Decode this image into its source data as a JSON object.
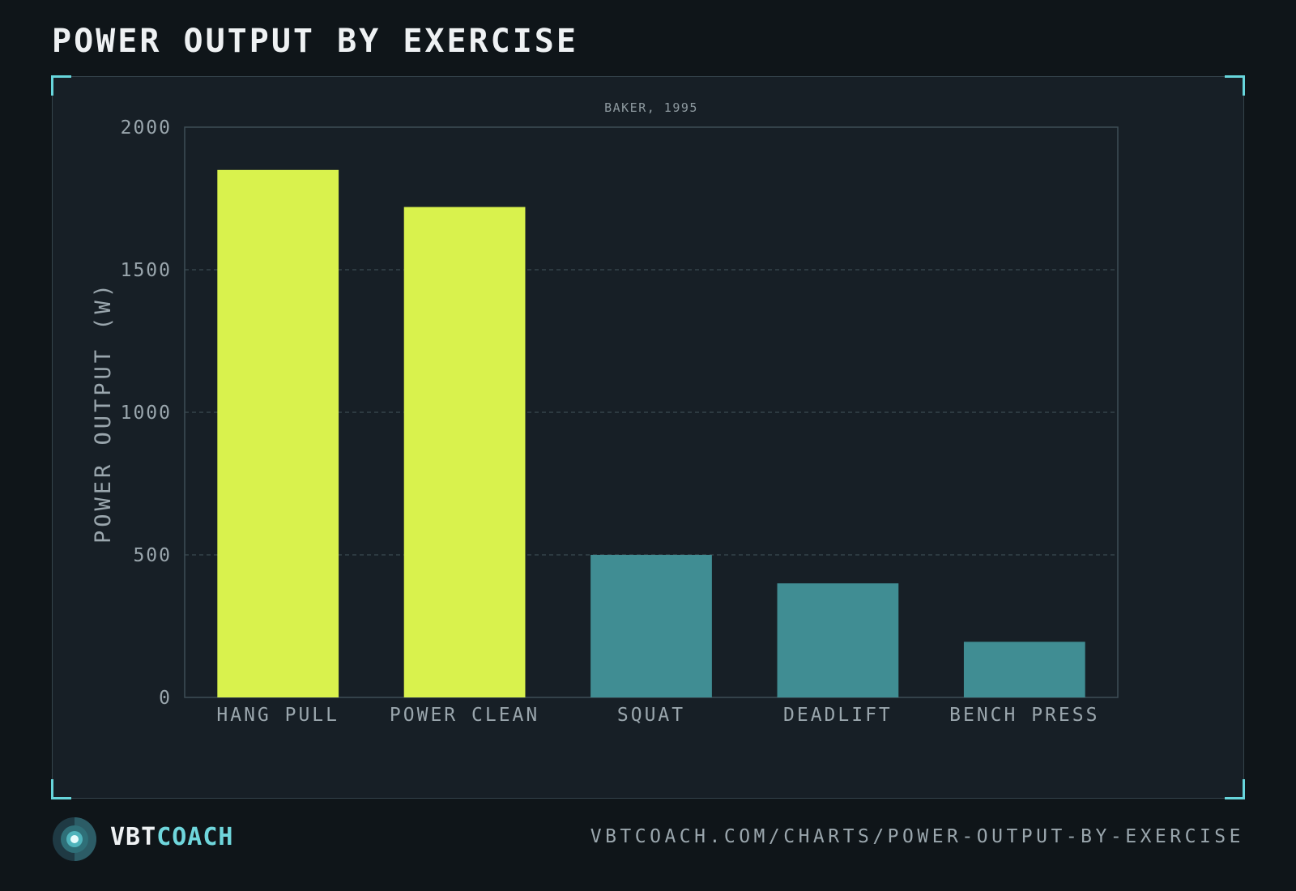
{
  "title": "POWER OUTPUT BY EXERCISE",
  "brand": {
    "part1": "VBT",
    "part2": "COACH",
    "logo_icon": "target-logo-icon"
  },
  "footer_url": "VBTCOACH.COM/CHARTS/POWER-OUTPUT-BY-EXERCISE",
  "colors": {
    "background": "#0f1519",
    "panel": "#171f26",
    "highlight_bar": "#d9f24d",
    "standard_bar": "#408d93",
    "accent": "#67d6dc"
  },
  "chart_data": {
    "type": "bar",
    "subtitle": "BAKER, 1995",
    "ylabel": "POWER OUTPUT (W)",
    "xlabel": "",
    "ylim": [
      0,
      2000
    ],
    "yticks": [
      0,
      500,
      1000,
      1500,
      2000
    ],
    "grid": "horizontal dashed",
    "categories": [
      "HANG PULL",
      "POWER CLEAN",
      "SQUAT",
      "DEADLIFT",
      "BENCH PRESS"
    ],
    "values": [
      1850,
      1720,
      500,
      400,
      195
    ],
    "highlighted": [
      true,
      true,
      false,
      false,
      false
    ]
  }
}
